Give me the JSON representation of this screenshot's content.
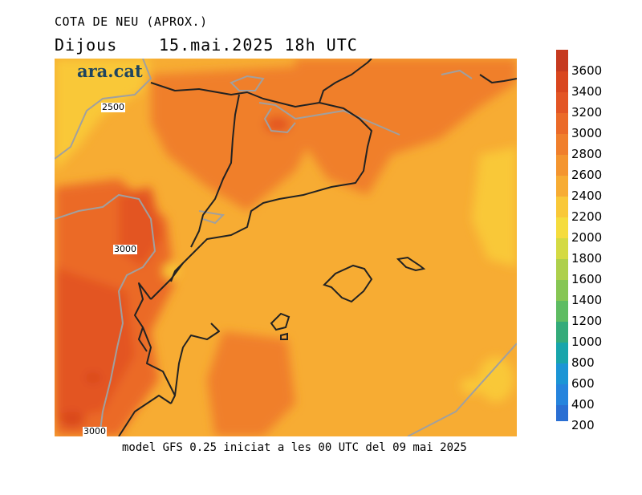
{
  "header": {
    "title": "COTA DE NEU (APROX.)",
    "day": "Dijous",
    "datetime": "15.mai.2025 18h UTC"
  },
  "map": {
    "logo": "ara.cat",
    "contour_labels": [
      "2500",
      "3000",
      "3000"
    ]
  },
  "footer": {
    "model": "model GFS 0.25 iniciat a les 00 UTC del 09 mai 2025"
  },
  "legend": {
    "labels": [
      "3600",
      "3400",
      "3200",
      "3000",
      "2800",
      "2600",
      "2400",
      "2200",
      "2000",
      "1800",
      "1600",
      "1400",
      "1200",
      "1000",
      "800",
      "600",
      "400",
      "200"
    ],
    "colors": [
      "#c63a1f",
      "#d9461e",
      "#e35524",
      "#eb6a28",
      "#f07f2c",
      "#f4952f",
      "#f7ac33",
      "#f9c838",
      "#f5dc3d",
      "#d4da43",
      "#aed04b",
      "#86c653",
      "#5ebc62",
      "#34ab7a",
      "#18a5ab",
      "#1b95d5",
      "#2584dd",
      "#2a6fd3"
    ]
  }
}
